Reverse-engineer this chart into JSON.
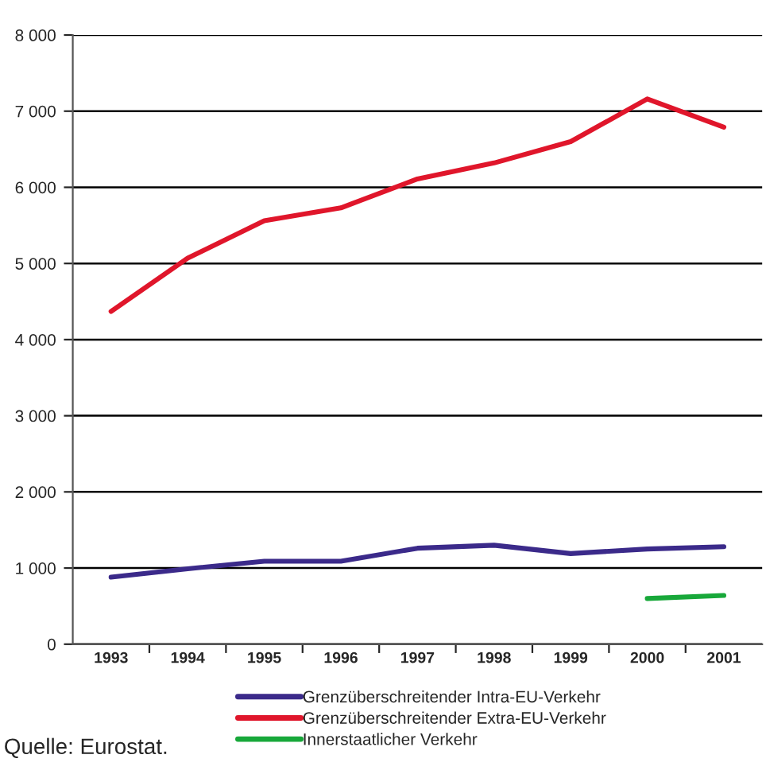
{
  "chart_data": {
    "type": "line",
    "categories": [
      "1993",
      "1994",
      "1995",
      "1996",
      "1997",
      "1998",
      "1999",
      "2000",
      "2001"
    ],
    "series": [
      {
        "name": "Grenzüberschreitender Intra-EU-Verkehr",
        "color": "#3b2a8a",
        "values": [
          880,
          990,
          1090,
          1090,
          1260,
          1300,
          1190,
          1250,
          1280
        ]
      },
      {
        "name": "Grenzüberschreitender Extra-EU-Verkehr",
        "color": "#e0162b",
        "values": [
          4370,
          5070,
          5560,
          5730,
          6110,
          6320,
          6600,
          7160,
          6790
        ]
      },
      {
        "name": "Innerstaatlicher Verkehr",
        "color": "#18a83a",
        "values": [
          null,
          null,
          null,
          null,
          null,
          null,
          null,
          600,
          640
        ]
      }
    ],
    "ylim": [
      0,
      8000
    ],
    "yticks": [
      {
        "value": 0,
        "label": "0"
      },
      {
        "value": 1000,
        "label": "1 000"
      },
      {
        "value": 2000,
        "label": "2 000"
      },
      {
        "value": 3000,
        "label": "3 000"
      },
      {
        "value": 4000,
        "label": "4 000"
      },
      {
        "value": 5000,
        "label": "5 000"
      },
      {
        "value": 6000,
        "label": "6 000"
      },
      {
        "value": 7000,
        "label": "7 000"
      },
      {
        "value": 8000,
        "label": "8 000"
      }
    ],
    "grid": "y",
    "legend": "bottom",
    "marker": "none",
    "line_style": "solid",
    "annotations": [
      "Quelle: Eurostat."
    ]
  }
}
